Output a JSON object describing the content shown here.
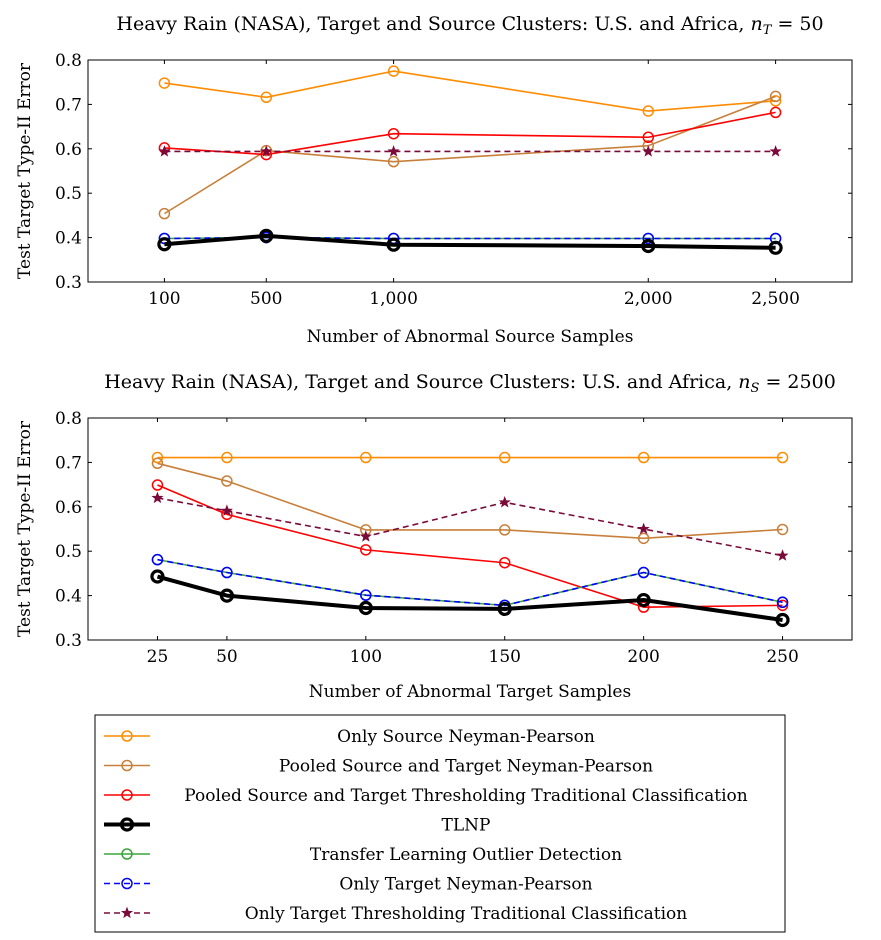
{
  "legend": [
    {
      "name": "Only Source Neyman-Pearson",
      "color": "#ff8c00",
      "style": "solid",
      "marker": "circle",
      "width": 1.6
    },
    {
      "name": "Pooled Source and Target Neyman-Pearson",
      "color": "#c87f3a",
      "style": "solid",
      "marker": "circle",
      "width": 1.6
    },
    {
      "name": "Pooled Source and Target Thresholding Traditional Classification",
      "color": "#ff0000",
      "style": "solid",
      "marker": "circle",
      "width": 1.6
    },
    {
      "name": "TLNP",
      "color": "#000000",
      "style": "solid",
      "marker": "circle",
      "width": 4
    },
    {
      "name": "Transfer Learning Outlier Detection",
      "color": "#3aa53a",
      "style": "solid",
      "marker": "circle",
      "width": 1.6
    },
    {
      "name": "Only Target Neyman-Pearson",
      "color": "#0000ff",
      "style": "dashed",
      "marker": "circle",
      "width": 1.6
    },
    {
      "name": "Only Target Thresholding Traditional Classification",
      "color": "#7a0a3a",
      "style": "dashed",
      "marker": "star",
      "width": 1.6
    }
  ],
  "chart_data": [
    {
      "type": "line",
      "title_main": "Heavy Rain (NASA), Target and Source Clusters: U.S. and Africa, ",
      "title_var": "n",
      "title_sub": "T",
      "title_rest": " = 50",
      "xlabel": "Number of Abnormal Source Samples",
      "ylabel": "Test Target Type-II Error",
      "xlim": [
        -200,
        2800
      ],
      "ylim": [
        0.3,
        0.8
      ],
      "xticks": [
        100,
        500,
        1000,
        2000,
        2500
      ],
      "xtick_labels": [
        "100",
        "500",
        "1,000",
        "2,000",
        "2,500"
      ],
      "yticks": [
        0.3,
        0.4,
        0.5,
        0.6,
        0.7,
        0.8
      ],
      "ytick_labels": [
        "0.3",
        "0.4",
        "0.5",
        "0.6",
        "0.7",
        "0.8"
      ],
      "series": [
        {
          "name": "Only Source Neyman-Pearson",
          "x": [
            100,
            500,
            1000,
            2000,
            2500
          ],
          "values": [
            0.748,
            0.716,
            0.775,
            0.685,
            0.708
          ]
        },
        {
          "name": "Pooled Source and Target Neyman-Pearson",
          "x": [
            100,
            500,
            1000,
            2000,
            2500
          ],
          "values": [
            0.454,
            0.596,
            0.571,
            0.607,
            0.718
          ]
        },
        {
          "name": "Pooled Source and Target Thresholding Traditional Classification",
          "x": [
            100,
            500,
            1000,
            2000,
            2500
          ],
          "values": [
            0.602,
            0.587,
            0.634,
            0.626,
            0.682
          ]
        },
        {
          "name": "Transfer Learning Outlier Detection",
          "x": [
            100,
            500,
            1000,
            2000,
            2500
          ],
          "values": [
            0.398,
            0.4,
            0.398,
            0.398,
            0.398
          ]
        },
        {
          "name": "Only Target Neyman-Pearson",
          "x": [
            100,
            500,
            1000,
            2000,
            2500
          ],
          "values": [
            0.398,
            0.4,
            0.398,
            0.398,
            0.398
          ]
        },
        {
          "name": "Only Target Thresholding Traditional Classification",
          "x": [
            100,
            500,
            1000,
            2000,
            2500
          ],
          "values": [
            0.594,
            0.594,
            0.594,
            0.594,
            0.594
          ]
        },
        {
          "name": "TLNP",
          "x": [
            100,
            500,
            1000,
            2000,
            2500
          ],
          "values": [
            0.385,
            0.404,
            0.384,
            0.381,
            0.377
          ]
        }
      ]
    },
    {
      "type": "line",
      "title_main": "Heavy Rain (NASA), Target and Source Clusters: U.S. and Africa, ",
      "title_var": "n",
      "title_sub": "S",
      "title_rest": " = 2500",
      "xlabel": "Number of Abnormal Target Samples",
      "ylabel": "Test Target Type-II Error",
      "xlim": [
        0,
        275
      ],
      "ylim": [
        0.3,
        0.8
      ],
      "xticks": [
        25,
        50,
        100,
        150,
        200,
        250
      ],
      "xtick_labels": [
        "25",
        "50",
        "100",
        "150",
        "200",
        "250"
      ],
      "yticks": [
        0.3,
        0.4,
        0.5,
        0.6,
        0.7,
        0.8
      ],
      "ytick_labels": [
        "0.3",
        "0.4",
        "0.5",
        "0.6",
        "0.7",
        "0.8"
      ],
      "series": [
        {
          "name": "Only Source Neyman-Pearson",
          "x": [
            25,
            50,
            100,
            150,
            200,
            250
          ],
          "values": [
            0.711,
            0.711,
            0.711,
            0.711,
            0.711,
            0.711
          ]
        },
        {
          "name": "Pooled Source and Target Neyman-Pearson",
          "x": [
            25,
            50,
            100,
            150,
            200,
            250
          ],
          "values": [
            0.698,
            0.658,
            0.548,
            0.548,
            0.529,
            0.549
          ]
        },
        {
          "name": "Pooled Source and Target Thresholding Traditional Classification",
          "x": [
            25,
            50,
            100,
            150,
            200,
            250
          ],
          "values": [
            0.649,
            0.583,
            0.503,
            0.474,
            0.374,
            0.378
          ]
        },
        {
          "name": "Transfer Learning Outlier Detection",
          "x": [
            25,
            50,
            100,
            150,
            200,
            250
          ],
          "values": [
            0.481,
            0.452,
            0.401,
            0.378,
            0.452,
            0.385
          ]
        },
        {
          "name": "Only Target Neyman-Pearson",
          "x": [
            25,
            50,
            100,
            150,
            200,
            250
          ],
          "values": [
            0.481,
            0.452,
            0.401,
            0.378,
            0.452,
            0.385
          ]
        },
        {
          "name": "Only Target Thresholding Traditional Classification",
          "x": [
            25,
            50,
            100,
            150,
            200,
            250
          ],
          "values": [
            0.62,
            0.591,
            0.533,
            0.61,
            0.55,
            0.49
          ]
        },
        {
          "name": "TLNP",
          "x": [
            25,
            50,
            100,
            150,
            200,
            250
          ],
          "values": [
            0.443,
            0.4,
            0.372,
            0.37,
            0.39,
            0.345
          ]
        }
      ]
    }
  ]
}
